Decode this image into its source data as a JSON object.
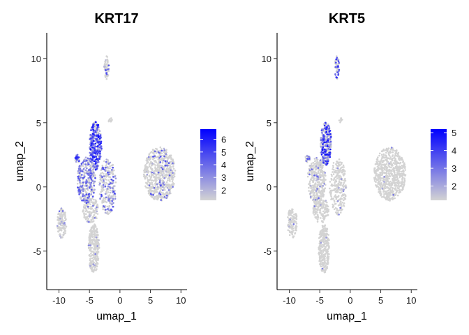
{
  "chart_data": [
    {
      "type": "scatter",
      "title": "KRT17",
      "xlabel": "umap_1",
      "ylabel": "umap_2",
      "xlim": [
        -12,
        11
      ],
      "ylim": [
        -8,
        12
      ],
      "x_ticks": [
        -10,
        -5,
        0,
        5,
        10
      ],
      "x_tick_labels": [
        "-10",
        "-5",
        "0",
        "5",
        "10"
      ],
      "y_ticks": [
        -5,
        0,
        5,
        10
      ],
      "y_tick_labels": [
        "-5",
        "0",
        "5",
        "10"
      ],
      "grid": false,
      "legend": {
        "placement": "right",
        "range": [
          1.2,
          6.8
        ],
        "ticks": [
          2,
          3,
          4,
          5,
          6
        ],
        "tick_labels": [
          "2",
          "3",
          "4",
          "5",
          "6"
        ],
        "low_color": "#d3d3d3",
        "high_color": "#0000ff"
      },
      "clusters": [
        {
          "cx": 6.5,
          "cy": 1.0,
          "rx": 2.6,
          "ry": 2.1,
          "n": 650,
          "expr_frac": 0.13,
          "expr_max": 5
        },
        {
          "cx": -4.0,
          "cy": 3.2,
          "rx": 1.0,
          "ry": 1.9,
          "n": 320,
          "expr_frac": 0.85,
          "expr_max": 6.5
        },
        {
          "cx": -5.5,
          "cy": 0.5,
          "rx": 1.5,
          "ry": 1.8,
          "n": 340,
          "expr_frac": 0.55,
          "expr_max": 5
        },
        {
          "cx": -7.0,
          "cy": 2.2,
          "rx": 0.4,
          "ry": 0.3,
          "n": 25,
          "expr_frac": 0.8,
          "expr_max": 6
        },
        {
          "cx": -2.0,
          "cy": 0.0,
          "rx": 1.4,
          "ry": 2.2,
          "n": 260,
          "expr_frac": 0.35,
          "expr_max": 5
        },
        {
          "cx": -4.8,
          "cy": -1.8,
          "rx": 1.3,
          "ry": 1.0,
          "n": 150,
          "expr_frac": 0.15,
          "expr_max": 4
        },
        {
          "cx": -4.3,
          "cy": -4.8,
          "rx": 0.9,
          "ry": 1.9,
          "n": 280,
          "expr_frac": 0.05,
          "expr_max": 4
        },
        {
          "cx": -9.5,
          "cy": -2.8,
          "rx": 0.8,
          "ry": 1.2,
          "n": 120,
          "expr_frac": 0.12,
          "expr_max": 4
        },
        {
          "cx": -2.2,
          "cy": 9.3,
          "rx": 0.4,
          "ry": 0.9,
          "n": 60,
          "expr_frac": 0.15,
          "expr_max": 5
        },
        {
          "cx": -1.6,
          "cy": 5.2,
          "rx": 0.3,
          "ry": 0.2,
          "n": 8,
          "expr_frac": 0.0,
          "expr_max": 2
        }
      ]
    },
    {
      "type": "scatter",
      "title": "KRT5",
      "xlabel": "umap_1",
      "ylabel": "umap_2",
      "xlim": [
        -12,
        11
      ],
      "ylim": [
        -8,
        12
      ],
      "x_ticks": [
        -10,
        -5,
        0,
        5,
        10
      ],
      "x_tick_labels": [
        "-10",
        "-5",
        "0",
        "5",
        "10"
      ],
      "y_ticks": [
        -5,
        0,
        5,
        10
      ],
      "y_tick_labels": [
        "-5",
        "0",
        "5",
        "10"
      ],
      "grid": false,
      "legend": {
        "placement": "right",
        "range": [
          1.2,
          5.2
        ],
        "ticks": [
          2,
          3,
          4,
          5
        ],
        "tick_labels": [
          "2",
          "3",
          "4",
          "5"
        ],
        "low_color": "#d3d3d3",
        "high_color": "#0000ff"
      },
      "clusters": [
        {
          "cx": 6.5,
          "cy": 1.0,
          "rx": 2.6,
          "ry": 2.1,
          "n": 650,
          "expr_frac": 0.01,
          "expr_max": 3
        },
        {
          "cx": -4.0,
          "cy": 3.4,
          "rx": 0.9,
          "ry": 1.7,
          "n": 320,
          "expr_frac": 0.6,
          "expr_max": 5
        },
        {
          "cx": -5.5,
          "cy": 0.5,
          "rx": 1.5,
          "ry": 1.8,
          "n": 340,
          "expr_frac": 0.08,
          "expr_max": 3.5
        },
        {
          "cx": -7.0,
          "cy": 2.2,
          "rx": 0.4,
          "ry": 0.3,
          "n": 25,
          "expr_frac": 0.5,
          "expr_max": 4
        },
        {
          "cx": -2.0,
          "cy": 0.0,
          "rx": 1.4,
          "ry": 2.2,
          "n": 260,
          "expr_frac": 0.04,
          "expr_max": 3
        },
        {
          "cx": -4.8,
          "cy": -1.8,
          "rx": 1.3,
          "ry": 1.0,
          "n": 150,
          "expr_frac": 0.03,
          "expr_max": 3
        },
        {
          "cx": -4.3,
          "cy": -4.8,
          "rx": 0.9,
          "ry": 1.9,
          "n": 280,
          "expr_frac": 0.01,
          "expr_max": 3
        },
        {
          "cx": -9.5,
          "cy": -2.8,
          "rx": 0.8,
          "ry": 1.2,
          "n": 120,
          "expr_frac": 0.03,
          "expr_max": 3
        },
        {
          "cx": -2.2,
          "cy": 9.3,
          "rx": 0.4,
          "ry": 0.9,
          "n": 60,
          "expr_frac": 0.3,
          "expr_max": 4.5
        },
        {
          "cx": -1.6,
          "cy": 5.2,
          "rx": 0.3,
          "ry": 0.2,
          "n": 8,
          "expr_frac": 0.0,
          "expr_max": 2
        }
      ]
    }
  ]
}
